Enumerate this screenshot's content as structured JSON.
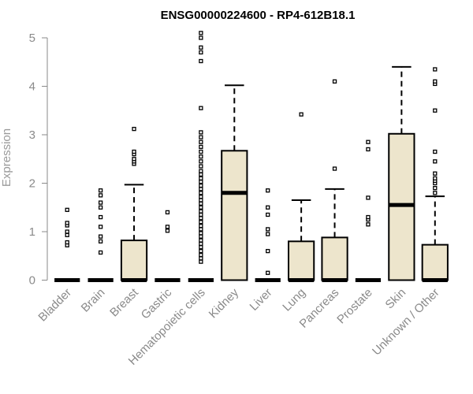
{
  "chart_data": {
    "type": "boxplot",
    "title": "ENSG00000224600 - RP4-612B18.1",
    "xlabel": "",
    "ylabel": "Expression",
    "ylim": [
      0,
      5.1
    ],
    "yticks": [
      0,
      1,
      2,
      3,
      4,
      5
    ],
    "box_fill": "#ede5cc",
    "categories": [
      "Bladder",
      "Brain",
      "Breast",
      "Gastric",
      "Hematopoietic cells",
      "Kidney",
      "Liver",
      "Lung",
      "Pancreas",
      "Prostate",
      "Skin",
      "Unknown / Other"
    ],
    "boxes": [
      {
        "q1": 0,
        "median": 0,
        "q3": 0,
        "lower": 0,
        "upper": 0,
        "outliers": [
          0.72,
          0.78,
          0.93,
          1.0,
          1.13,
          1.18,
          1.45
        ]
      },
      {
        "q1": 0,
        "median": 0,
        "q3": 0,
        "lower": 0,
        "upper": 0,
        "outliers": [
          0.57,
          0.8,
          0.9,
          1.1,
          1.3,
          1.5,
          1.6,
          1.75,
          1.85
        ]
      },
      {
        "q1": 0,
        "median": 0,
        "q3": 0.82,
        "lower": 0,
        "upper": 1.97,
        "outliers": [
          2.4,
          2.45,
          2.5,
          2.6,
          2.65,
          3.12
        ]
      },
      {
        "q1": 0,
        "median": 0,
        "q3": 0,
        "lower": 0,
        "upper": 0,
        "outliers": [
          1.02,
          1.1,
          1.4
        ]
      },
      {
        "q1": 0,
        "median": 0,
        "q3": 0,
        "lower": 0,
        "upper": 0,
        "outliers": [
          0.38,
          0.45,
          0.52,
          0.6,
          0.68,
          0.75,
          0.82,
          0.9,
          0.97,
          1.05,
          1.12,
          1.2,
          1.28,
          1.35,
          1.42,
          1.5,
          1.58,
          1.65,
          1.72,
          1.8,
          1.88,
          1.95,
          2.03,
          2.1,
          2.18,
          2.25,
          2.35,
          2.45,
          2.55,
          2.65,
          2.75,
          2.85,
          2.95,
          3.05,
          3.55,
          4.52,
          4.7,
          4.8,
          5.0,
          5.1
        ]
      },
      {
        "q1": 0,
        "median": 1.8,
        "q3": 2.67,
        "lower": 0,
        "upper": 4.02,
        "outliers": []
      },
      {
        "q1": 0,
        "median": 0,
        "q3": 0,
        "lower": 0,
        "upper": 0,
        "outliers": [
          0.15,
          0.6,
          0.95,
          1.05,
          1.35,
          1.5,
          1.85
        ]
      },
      {
        "q1": 0,
        "median": 0,
        "q3": 0.8,
        "lower": 0,
        "upper": 1.65,
        "outliers": [
          3.42
        ]
      },
      {
        "q1": 0,
        "median": 0,
        "q3": 0.88,
        "lower": 0,
        "upper": 1.88,
        "outliers": [
          2.3,
          4.1
        ]
      },
      {
        "q1": 0,
        "median": 0,
        "q3": 0,
        "lower": 0,
        "upper": 0,
        "outliers": [
          1.15,
          1.25,
          1.3,
          1.7,
          2.7,
          2.85
        ]
      },
      {
        "q1": 0,
        "median": 1.55,
        "q3": 3.02,
        "lower": 0,
        "upper": 4.4,
        "outliers": []
      },
      {
        "q1": 0,
        "median": 0,
        "q3": 0.73,
        "lower": 0,
        "upper": 1.73,
        "outliers": [
          1.8,
          1.9,
          2.0,
          2.05,
          2.1,
          2.2,
          2.45,
          2.65,
          3.5,
          4.05,
          4.1,
          4.35
        ]
      }
    ]
  }
}
